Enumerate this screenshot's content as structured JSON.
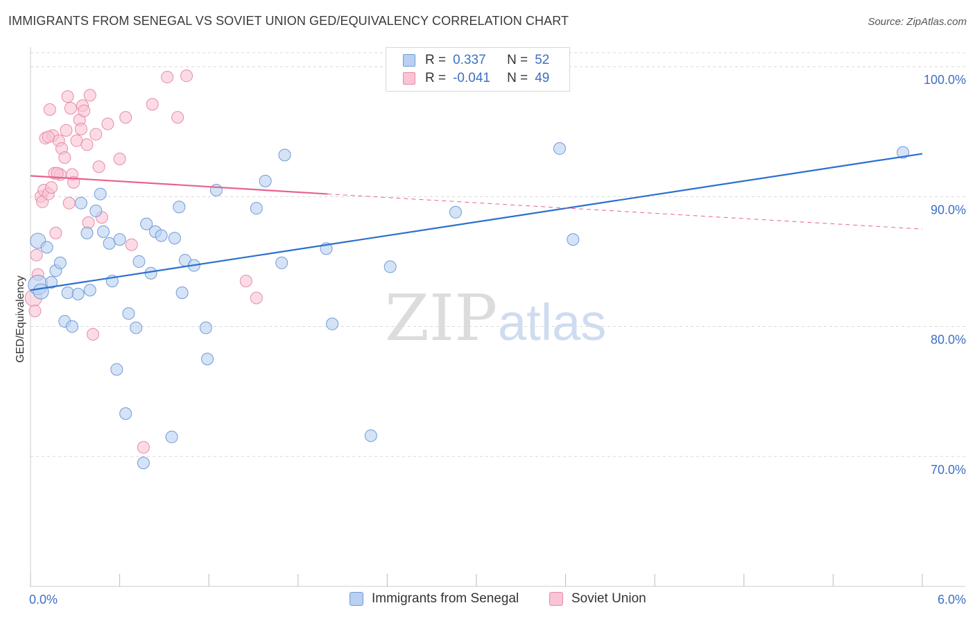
{
  "title": "IMMIGRANTS FROM SENEGAL VS SOVIET UNION GED/EQUIVALENCY CORRELATION CHART",
  "source": "Source: ZipAtlas.com",
  "watermark": {
    "zip": "ZIP",
    "atlas": "atlas"
  },
  "colors": {
    "blue_fill": "#b9d0f2",
    "blue_stroke": "#6f9ad8",
    "blue_line": "#2a6fcf",
    "pink_fill": "#f9c4d4",
    "pink_stroke": "#e88aa8",
    "pink_line": "#e8628e",
    "tick_label": "#3d6fc4",
    "grid": "#d8d8d8"
  },
  "legend": {
    "rows": [
      {
        "r_label": "R =",
        "r_value": "0.337",
        "n_label": "N =",
        "n_value": "52",
        "series": "blue"
      },
      {
        "r_label": "R =",
        "r_value": "-0.041",
        "n_label": "N =",
        "n_value": "49",
        "series": "pink"
      }
    ]
  },
  "chart_data": {
    "type": "scatter",
    "title": "IMMIGRANTS FROM SENEGAL VS SOVIET UNION GED/EQUIVALENCY CORRELATION CHART",
    "xlabel": "",
    "ylabel": "GED/Equivalency",
    "xlim": [
      0.0,
      6.0
    ],
    "ylim": [
      60.0,
      101.5
    ],
    "x_tick_labels": [
      "0.0%",
      "6.0%"
    ],
    "y_ticks": [
      70,
      80,
      90,
      100
    ],
    "y_tick_labels": [
      "70.0%",
      "80.0%",
      "90.0%",
      "100.0%"
    ],
    "grid": true,
    "legend_position": "bottom",
    "series": [
      {
        "name": "Immigrants from Senegal",
        "color": "blue",
        "trend": {
          "x": [
            0.0,
            6.0
          ],
          "y": [
            82.8,
            93.3
          ]
        },
        "points": [
          {
            "x": 0.05,
            "y": 83.2,
            "r": 14
          },
          {
            "x": 0.07,
            "y": 82.7,
            "r": 11
          },
          {
            "x": 0.05,
            "y": 86.6,
            "r": 11
          },
          {
            "x": 0.11,
            "y": 86.1
          },
          {
            "x": 0.14,
            "y": 83.4
          },
          {
            "x": 0.17,
            "y": 84.3
          },
          {
            "x": 0.2,
            "y": 84.9
          },
          {
            "x": 0.25,
            "y": 82.6
          },
          {
            "x": 0.23,
            "y": 80.4
          },
          {
            "x": 0.28,
            "y": 80.0
          },
          {
            "x": 0.32,
            "y": 82.5
          },
          {
            "x": 0.34,
            "y": 89.5
          },
          {
            "x": 0.38,
            "y": 87.2
          },
          {
            "x": 0.4,
            "y": 82.8
          },
          {
            "x": 0.44,
            "y": 88.9
          },
          {
            "x": 0.47,
            "y": 90.2
          },
          {
            "x": 0.49,
            "y": 87.3
          },
          {
            "x": 0.53,
            "y": 86.4
          },
          {
            "x": 0.55,
            "y": 83.5
          },
          {
            "x": 0.58,
            "y": 76.7
          },
          {
            "x": 0.6,
            "y": 86.7
          },
          {
            "x": 0.64,
            "y": 73.3
          },
          {
            "x": 0.66,
            "y": 81.0
          },
          {
            "x": 0.71,
            "y": 79.9
          },
          {
            "x": 0.73,
            "y": 85.0
          },
          {
            "x": 0.76,
            "y": 69.5
          },
          {
            "x": 0.78,
            "y": 87.9
          },
          {
            "x": 0.81,
            "y": 84.1
          },
          {
            "x": 0.84,
            "y": 87.3
          },
          {
            "x": 0.88,
            "y": 87.0
          },
          {
            "x": 0.95,
            "y": 71.5
          },
          {
            "x": 0.97,
            "y": 86.8
          },
          {
            "x": 1.0,
            "y": 89.2
          },
          {
            "x": 1.02,
            "y": 82.6
          },
          {
            "x": 1.04,
            "y": 85.1
          },
          {
            "x": 1.1,
            "y": 84.7
          },
          {
            "x": 1.18,
            "y": 79.9
          },
          {
            "x": 1.19,
            "y": 77.5
          },
          {
            "x": 1.25,
            "y": 90.5
          },
          {
            "x": 1.52,
            "y": 89.1
          },
          {
            "x": 1.58,
            "y": 91.2
          },
          {
            "x": 1.69,
            "y": 84.9
          },
          {
            "x": 1.71,
            "y": 93.2
          },
          {
            "x": 1.99,
            "y": 86.0
          },
          {
            "x": 2.03,
            "y": 80.2
          },
          {
            "x": 2.29,
            "y": 71.6
          },
          {
            "x": 2.42,
            "y": 84.6
          },
          {
            "x": 2.75,
            "y": 100.0
          },
          {
            "x": 2.86,
            "y": 88.8
          },
          {
            "x": 3.56,
            "y": 93.7
          },
          {
            "x": 3.65,
            "y": 86.7
          },
          {
            "x": 5.87,
            "y": 93.4
          }
        ]
      },
      {
        "name": "Soviet Union",
        "color": "pink",
        "trend": {
          "x": [
            0.0,
            2.0
          ],
          "y": [
            91.6,
            90.2
          ]
        },
        "trend_dashed": {
          "x": [
            2.0,
            6.0
          ],
          "y": [
            90.2,
            87.5
          ]
        },
        "points": [
          {
            "x": 0.02,
            "y": 82.2,
            "r": 12
          },
          {
            "x": 0.03,
            "y": 81.2
          },
          {
            "x": 0.04,
            "y": 85.5
          },
          {
            "x": 0.05,
            "y": 84.0
          },
          {
            "x": 0.07,
            "y": 90.0
          },
          {
            "x": 0.08,
            "y": 89.6
          },
          {
            "x": 0.09,
            "y": 90.5
          },
          {
            "x": 0.1,
            "y": 94.5
          },
          {
            "x": 0.12,
            "y": 90.2
          },
          {
            "x": 0.13,
            "y": 96.7
          },
          {
            "x": 0.14,
            "y": 90.7
          },
          {
            "x": 0.15,
            "y": 94.7
          },
          {
            "x": 0.16,
            "y": 91.8
          },
          {
            "x": 0.17,
            "y": 87.2
          },
          {
            "x": 0.19,
            "y": 94.3
          },
          {
            "x": 0.2,
            "y": 91.7
          },
          {
            "x": 0.21,
            "y": 93.7
          },
          {
            "x": 0.23,
            "y": 93.0
          },
          {
            "x": 0.24,
            "y": 95.1
          },
          {
            "x": 0.25,
            "y": 97.7
          },
          {
            "x": 0.26,
            "y": 89.5
          },
          {
            "x": 0.28,
            "y": 91.7
          },
          {
            "x": 0.29,
            "y": 91.1
          },
          {
            "x": 0.31,
            "y": 94.3
          },
          {
            "x": 0.33,
            "y": 95.9
          },
          {
            "x": 0.35,
            "y": 97.0
          },
          {
            "x": 0.36,
            "y": 96.6
          },
          {
            "x": 0.38,
            "y": 94.0
          },
          {
            "x": 0.39,
            "y": 88.0
          },
          {
            "x": 0.4,
            "y": 97.8
          },
          {
            "x": 0.42,
            "y": 79.4
          },
          {
            "x": 0.44,
            "y": 94.8
          },
          {
            "x": 0.46,
            "y": 92.3
          },
          {
            "x": 0.48,
            "y": 88.4
          },
          {
            "x": 0.52,
            "y": 95.6
          },
          {
            "x": 0.6,
            "y": 92.9
          },
          {
            "x": 0.64,
            "y": 96.1
          },
          {
            "x": 0.68,
            "y": 86.3
          },
          {
            "x": 0.76,
            "y": 70.7
          },
          {
            "x": 0.82,
            "y": 97.1
          },
          {
            "x": 0.92,
            "y": 99.2
          },
          {
            "x": 0.99,
            "y": 96.1
          },
          {
            "x": 1.05,
            "y": 99.3
          },
          {
            "x": 1.45,
            "y": 83.5
          },
          {
            "x": 1.52,
            "y": 82.2
          },
          {
            "x": 0.34,
            "y": 95.2
          },
          {
            "x": 0.18,
            "y": 91.8
          },
          {
            "x": 0.27,
            "y": 96.8
          },
          {
            "x": 0.12,
            "y": 94.6
          }
        ]
      }
    ]
  },
  "bottom_legend": {
    "items": [
      {
        "label": "Immigrants from Senegal",
        "series": "blue"
      },
      {
        "label": "Soviet Union",
        "series": "pink"
      }
    ]
  }
}
